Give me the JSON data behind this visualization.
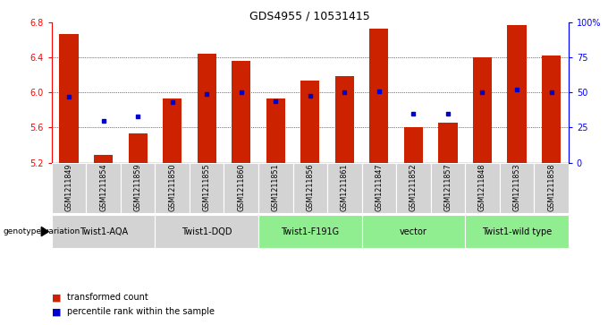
{
  "title": "GDS4955 / 10531415",
  "samples": [
    "GSM1211849",
    "GSM1211854",
    "GSM1211859",
    "GSM1211850",
    "GSM1211855",
    "GSM1211860",
    "GSM1211851",
    "GSM1211856",
    "GSM1211861",
    "GSM1211847",
    "GSM1211852",
    "GSM1211857",
    "GSM1211848",
    "GSM1211853",
    "GSM1211858"
  ],
  "bar_values": [
    6.67,
    5.29,
    5.53,
    5.93,
    6.45,
    6.36,
    5.93,
    6.14,
    6.19,
    6.73,
    5.61,
    5.66,
    6.4,
    6.77,
    6.43
  ],
  "percentile_values": [
    47,
    30,
    33,
    43,
    49,
    50,
    44,
    48,
    50,
    51,
    35,
    35,
    50,
    52,
    50
  ],
  "y_min": 5.2,
  "y_max": 6.8,
  "bar_color": "#cc2200",
  "dot_color": "#0000cc",
  "groups": [
    {
      "label": "Twist1-AQA",
      "start": 0,
      "end": 3,
      "color": "#d3d3d3"
    },
    {
      "label": "Twist1-DQD",
      "start": 3,
      "end": 6,
      "color": "#d3d3d3"
    },
    {
      "label": "Twist1-F191G",
      "start": 6,
      "end": 9,
      "color": "#90ee90"
    },
    {
      "label": "vector",
      "start": 9,
      "end": 12,
      "color": "#90ee90"
    },
    {
      "label": "Twist1-wild type",
      "start": 12,
      "end": 15,
      "color": "#90ee90"
    }
  ],
  "legend_items": [
    {
      "label": "transformed count",
      "color": "#cc2200"
    },
    {
      "label": "percentile rank within the sample",
      "color": "#0000cc"
    }
  ],
  "genotype_label": "genotype/variation",
  "right_tick_labels": [
    "0",
    "25",
    "50",
    "75",
    "100%"
  ],
  "left_tick_labels": [
    "5.2",
    "5.6",
    "6.0",
    "6.4",
    "6.8"
  ],
  "left_ticks": [
    5.2,
    5.6,
    6.0,
    6.4,
    6.8
  ],
  "grid_lines": [
    5.6,
    6.0,
    6.4
  ]
}
